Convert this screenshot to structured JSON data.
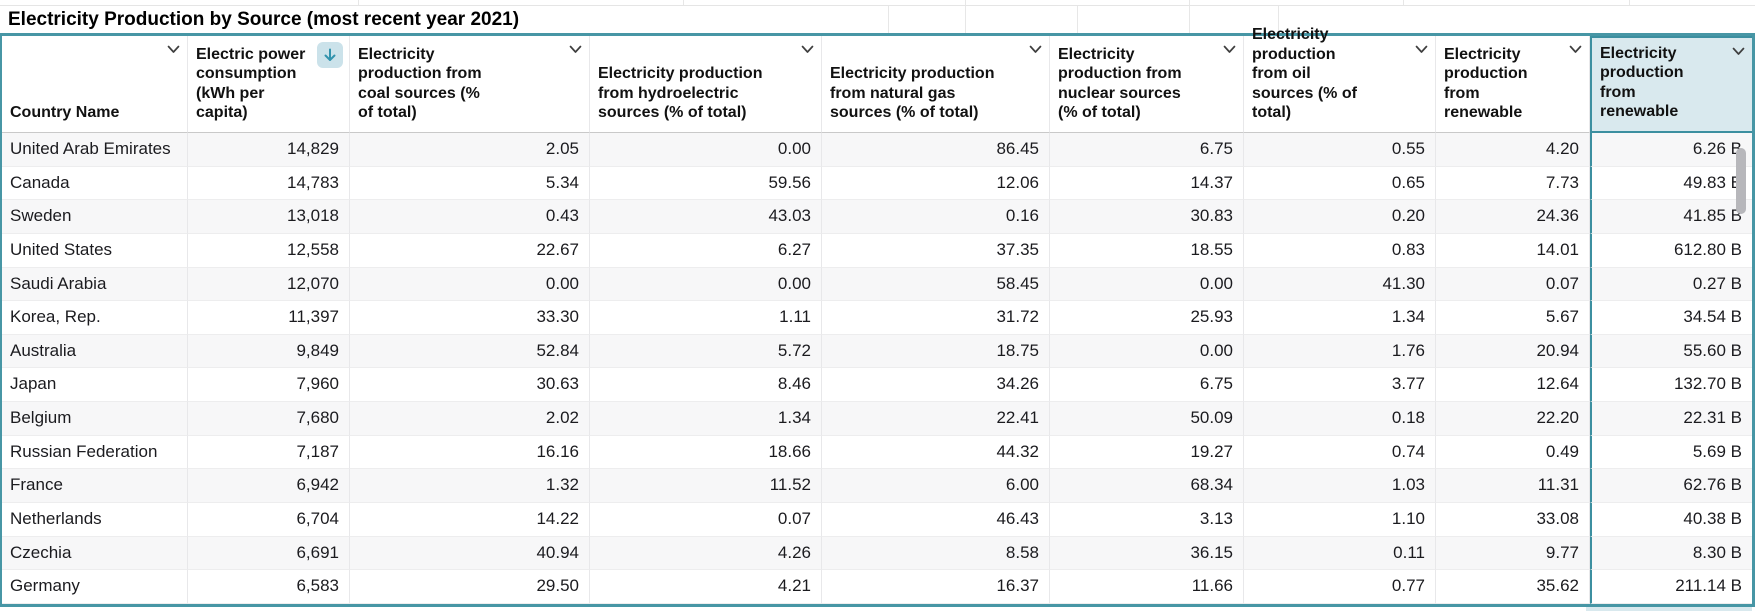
{
  "sheet": {
    "title": "Electricity Production by Source (most recent year 2021)"
  },
  "colors": {
    "selection_teal": "#4796a5",
    "selected_header_fill": "#d9e9ee",
    "sort_icon_teal": "#3293ad"
  },
  "icons": {
    "column_menu": "chevron-down",
    "sort_indicator": "arrow-down"
  },
  "table": {
    "columns": [
      {
        "id": "country",
        "label": "Country Name",
        "align": "left"
      },
      {
        "id": "power",
        "label": "Electric power consumption (kWh per capita)",
        "sorted": "descending"
      },
      {
        "id": "coal",
        "label": "Electricity production from coal sources (% of total)"
      },
      {
        "id": "hydro",
        "label": "Electricity production from hydroelectric sources (% of total)"
      },
      {
        "id": "gas",
        "label": "Electricity production from natural gas sources (% of total)"
      },
      {
        "id": "nuclear",
        "label": "Electricity production from nuclear sources (% of total)"
      },
      {
        "id": "oil",
        "label": "Electricity production from oil sources (% of total)"
      },
      {
        "id": "renewable_pct",
        "label": "Electricity production from renewable"
      },
      {
        "id": "renewable_total",
        "label": "Electricity production from renewable",
        "selected": true
      }
    ],
    "rows": [
      {
        "country": "United Arab Emirates",
        "power": "14,829",
        "coal": "2.05",
        "hydro": "0.00",
        "gas": "86.45",
        "nuclear": "6.75",
        "oil": "0.55",
        "renewable_pct": "4.20",
        "renewable_total": "6.26 B"
      },
      {
        "country": "Canada",
        "power": "14,783",
        "coal": "5.34",
        "hydro": "59.56",
        "gas": "12.06",
        "nuclear": "14.37",
        "oil": "0.65",
        "renewable_pct": "7.73",
        "renewable_total": "49.83 B"
      },
      {
        "country": "Sweden",
        "power": "13,018",
        "coal": "0.43",
        "hydro": "43.03",
        "gas": "0.16",
        "nuclear": "30.83",
        "oil": "0.20",
        "renewable_pct": "24.36",
        "renewable_total": "41.85 B"
      },
      {
        "country": "United States",
        "power": "12,558",
        "coal": "22.67",
        "hydro": "6.27",
        "gas": "37.35",
        "nuclear": "18.55",
        "oil": "0.83",
        "renewable_pct": "14.01",
        "renewable_total": "612.80 B"
      },
      {
        "country": "Saudi Arabia",
        "power": "12,070",
        "coal": "0.00",
        "hydro": "0.00",
        "gas": "58.45",
        "nuclear": "0.00",
        "oil": "41.30",
        "renewable_pct": "0.07",
        "renewable_total": "0.27 B"
      },
      {
        "country": "Korea, Rep.",
        "power": "11,397",
        "coal": "33.30",
        "hydro": "1.11",
        "gas": "31.72",
        "nuclear": "25.93",
        "oil": "1.34",
        "renewable_pct": "5.67",
        "renewable_total": "34.54 B"
      },
      {
        "country": "Australia",
        "power": "9,849",
        "coal": "52.84",
        "hydro": "5.72",
        "gas": "18.75",
        "nuclear": "0.00",
        "oil": "1.76",
        "renewable_pct": "20.94",
        "renewable_total": "55.60 B"
      },
      {
        "country": "Japan",
        "power": "7,960",
        "coal": "30.63",
        "hydro": "8.46",
        "gas": "34.26",
        "nuclear": "6.75",
        "oil": "3.77",
        "renewable_pct": "12.64",
        "renewable_total": "132.70 B"
      },
      {
        "country": "Belgium",
        "power": "7,680",
        "coal": "2.02",
        "hydro": "1.34",
        "gas": "22.41",
        "nuclear": "50.09",
        "oil": "0.18",
        "renewable_pct": "22.20",
        "renewable_total": "22.31 B"
      },
      {
        "country": "Russian Federation",
        "power": "7,187",
        "coal": "16.16",
        "hydro": "18.66",
        "gas": "44.32",
        "nuclear": "19.27",
        "oil": "0.74",
        "renewable_pct": "0.49",
        "renewable_total": "5.69 B"
      },
      {
        "country": "France",
        "power": "6,942",
        "coal": "1.32",
        "hydro": "11.52",
        "gas": "6.00",
        "nuclear": "68.34",
        "oil": "1.03",
        "renewable_pct": "11.31",
        "renewable_total": "62.76 B"
      },
      {
        "country": "Netherlands",
        "power": "6,704",
        "coal": "14.22",
        "hydro": "0.07",
        "gas": "46.43",
        "nuclear": "3.13",
        "oil": "1.10",
        "renewable_pct": "33.08",
        "renewable_total": "40.38 B"
      },
      {
        "country": "Czechia",
        "power": "6,691",
        "coal": "40.94",
        "hydro": "4.26",
        "gas": "8.58",
        "nuclear": "36.15",
        "oil": "0.11",
        "renewable_pct": "9.77",
        "renewable_total": "8.30 B"
      },
      {
        "country": "Germany",
        "power": "6,583",
        "coal": "29.50",
        "hydro": "4.21",
        "gas": "16.37",
        "nuclear": "11.66",
        "oil": "0.77",
        "renewable_pct": "35.62",
        "renewable_total": "211.14 B"
      }
    ]
  }
}
